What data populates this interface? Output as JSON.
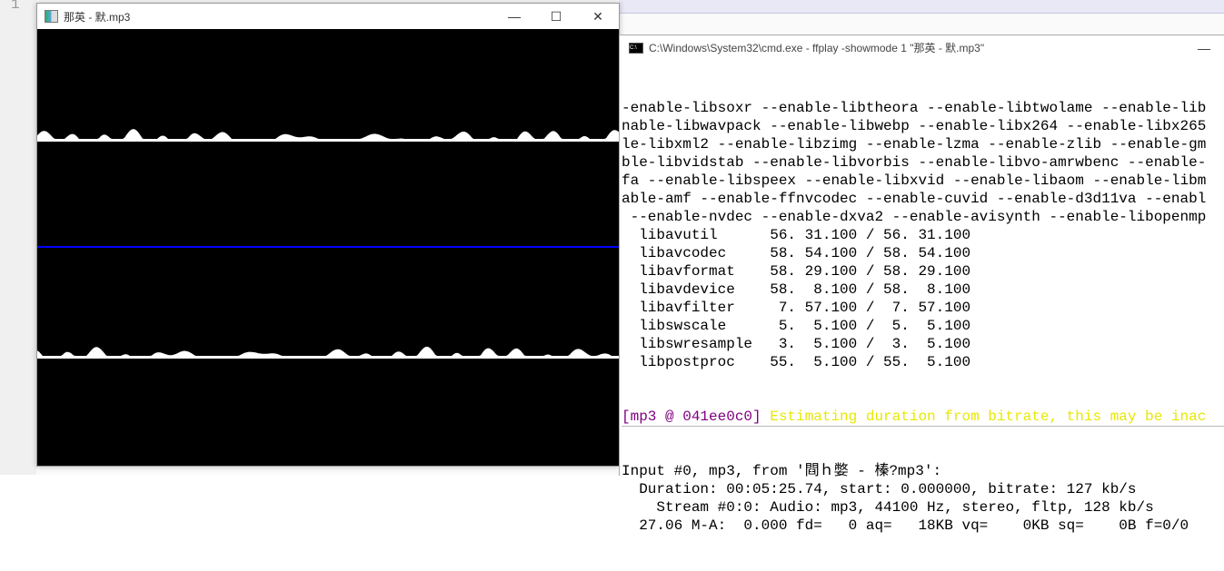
{
  "editor": {
    "line_number": "1"
  },
  "ffplay_window": {
    "title": "那英 - 默.mp3",
    "icon": "app-icon",
    "buttons": {
      "minimize": "—",
      "maximize": "☐",
      "close": "✕"
    },
    "colors": {
      "background": "#000000",
      "wave": "#ffffff",
      "separator": "#0000ff"
    }
  },
  "cmd_window": {
    "title": "C:\\Windows\\System32\\cmd.exe - ffplay  -showmode 1 \"那英 - 默.mp3\"",
    "icon_text": "C:\\",
    "minimize": "—",
    "lines": [
      "-enable-libsoxr --enable-libtheora --enable-libtwolame --enable-lib",
      "nable-libwavpack --enable-libwebp --enable-libx264 --enable-libx265",
      "le-libxml2 --enable-libzimg --enable-lzma --enable-zlib --enable-gm",
      "ble-libvidstab --enable-libvorbis --enable-libvo-amrwbenc --enable-",
      "fa --enable-libspeex --enable-libxvid --enable-libaom --enable-libm",
      "able-amf --enable-ffnvcodec --enable-cuvid --enable-d3d11va --enabl",
      " --enable-nvdec --enable-dxva2 --enable-avisynth --enable-libopenmp",
      "  libavutil      56. 31.100 / 56. 31.100",
      "  libavcodec     58. 54.100 / 58. 54.100",
      "  libavformat    58. 29.100 / 58. 29.100",
      "  libavdevice    58.  8.100 / 58.  8.100",
      "  libavfilter     7. 57.100 /  7. 57.100",
      "  libswscale      5.  5.100 /  5.  5.100",
      "  libswresample   3.  5.100 /  3.  5.100",
      "  libpostproc    55.  5.100 / 55.  5.100"
    ],
    "warning_prefix": "[mp3 @ 041ee0c0]",
    "warning_text": " Estimating duration from bitrate, this may be inac",
    "tail_lines": [
      "Input #0, mp3, from '閰ｈ嫳 - 榛?mp3':",
      "  Duration: 00:05:25.74, start: 0.000000, bitrate: 127 kb/s",
      "    Stream #0:0: Audio: mp3, 44100 Hz, stereo, fltp, 128 kb/s",
      "  27.06 M-A:  0.000 fd=   0 aq=   18KB vq=    0KB sq=    0B f=0/0"
    ],
    "colors": {
      "prefix": "#800080",
      "warning": "#e8e800"
    }
  }
}
